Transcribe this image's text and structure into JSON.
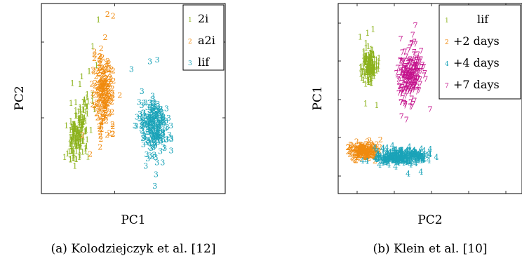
{
  "colors": {
    "green": "#8cb21c",
    "orange": "#f08a0e",
    "teal": "#1aa3b8",
    "magenta": "#c4128c"
  },
  "chart_data": [
    {
      "type": "scatter",
      "title": "",
      "xlabel": "PC1",
      "ylabel": "PC2",
      "caption": "(a) Kolodziejczyk et al. [12]",
      "grid": false,
      "legend_position": "top-right",
      "xlim": [
        0,
        10
      ],
      "ylim": [
        0,
        10
      ],
      "series": [
        {
          "name": "2i",
          "marker": "1",
          "color": "#8cb21c",
          "center": [
            2.0,
            3.1
          ],
          "spread": [
            0.55,
            1.6
          ],
          "tilt": 0.35,
          "n": 170,
          "outliers": [
            [
              3.1,
              9.0
            ],
            [
              2.8,
              7.6
            ],
            [
              3.0,
              6.6
            ],
            [
              2.6,
              6.3
            ],
            [
              2.1,
              5.6
            ]
          ]
        },
        {
          "name": "a2i",
          "marker": "2",
          "color": "#f08a0e",
          "center": [
            3.4,
            5.2
          ],
          "spread": [
            0.5,
            1.7
          ],
          "tilt": 0.0,
          "n": 190,
          "outliers": [
            [
              3.6,
              9.3
            ],
            [
              3.9,
              9.2
            ],
            [
              3.2,
              2.3
            ]
          ]
        },
        {
          "name": "lif",
          "marker": "3",
          "color": "#1aa3b8",
          "center": [
            6.1,
            3.4
          ],
          "spread": [
            0.75,
            1.45
          ],
          "tilt": -0.15,
          "n": 220,
          "outliers": [
            [
              5.9,
              6.8
            ],
            [
              6.3,
              6.9
            ],
            [
              4.9,
              6.4
            ],
            [
              6.6,
              1.5
            ]
          ]
        }
      ]
    },
    {
      "type": "scatter",
      "title": "",
      "xlabel": "PC2",
      "ylabel": "PC1",
      "caption": "(b) Klein et al. [10]",
      "grid": false,
      "legend_position": "top-right",
      "xlim": [
        0,
        10
      ],
      "ylim": [
        0,
        10
      ],
      "series": [
        {
          "name": "lif",
          "marker": "1",
          "color": "#8cb21c",
          "center": [
            1.7,
            6.6
          ],
          "spread": [
            0.35,
            0.75
          ],
          "tilt": 0.0,
          "n": 150,
          "outliers": [
            [
              1.6,
              8.3
            ],
            [
              1.9,
              8.5
            ],
            [
              1.2,
              8.1
            ],
            [
              1.5,
              4.6
            ],
            [
              2.1,
              4.5
            ]
          ]
        },
        {
          "name": "+2 days",
          "marker": "2",
          "color": "#f08a0e",
          "center": [
            1.4,
            2.1
          ],
          "spread": [
            0.7,
            0.35
          ],
          "tilt": 0.0,
          "n": 160,
          "outliers": [
            [
              2.3,
              2.7
            ],
            [
              1.0,
              2.6
            ]
          ]
        },
        {
          "name": "+4 days",
          "marker": "4",
          "color": "#1aa3b8",
          "center": [
            3.4,
            1.8
          ],
          "spread": [
            1.3,
            0.35
          ],
          "tilt": 0.05,
          "n": 230,
          "outliers": [
            [
              4.5,
              1.0
            ],
            [
              3.8,
              0.9
            ],
            [
              5.0,
              2.2
            ]
          ]
        },
        {
          "name": "+7 days",
          "marker": "7",
          "color": "#c4128c",
          "center": [
            3.9,
            6.1
          ],
          "spread": [
            0.55,
            1.35
          ],
          "tilt": 0.35,
          "n": 210,
          "outliers": [
            [
              3.4,
              8.0
            ],
            [
              4.2,
              8.7
            ],
            [
              5.0,
              4.3
            ]
          ]
        }
      ]
    }
  ]
}
